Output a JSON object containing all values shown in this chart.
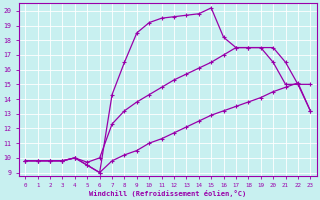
{
  "xlabel": "Windchill (Refroidissement éolien,°C)",
  "xlim": [
    -0.5,
    23.5
  ],
  "ylim": [
    8.8,
    20.5
  ],
  "xticks": [
    0,
    1,
    2,
    3,
    4,
    5,
    6,
    7,
    8,
    9,
    10,
    11,
    12,
    13,
    14,
    15,
    16,
    17,
    18,
    19,
    20,
    21,
    22,
    23
  ],
  "yticks": [
    9,
    10,
    11,
    12,
    13,
    14,
    15,
    16,
    17,
    18,
    19,
    20
  ],
  "bg_color": "#c8f0f0",
  "line_color": "#9900aa",
  "grid_color": "#ffffff",
  "line1_x": [
    0,
    1,
    2,
    3,
    4,
    5,
    6,
    7,
    8,
    9,
    10,
    11,
    12,
    13,
    14,
    15,
    16,
    17,
    18,
    19,
    20,
    21,
    22,
    23
  ],
  "line1_y": [
    9.8,
    9.8,
    9.8,
    9.8,
    10.0,
    9.5,
    9.0,
    9.8,
    10.2,
    10.5,
    11.0,
    11.3,
    11.7,
    12.1,
    12.5,
    12.9,
    13.2,
    13.5,
    13.8,
    14.1,
    14.5,
    14.8,
    15.1,
    13.2
  ],
  "line2_x": [
    0,
    1,
    2,
    3,
    4,
    5,
    6,
    7,
    8,
    9,
    10,
    11,
    12,
    13,
    14,
    15,
    16,
    17,
    18,
    19,
    20,
    21,
    22,
    23
  ],
  "line2_y": [
    9.8,
    9.8,
    9.8,
    9.8,
    10.0,
    9.7,
    10.0,
    12.3,
    13.2,
    13.8,
    14.3,
    14.8,
    15.3,
    15.7,
    16.1,
    16.5,
    17.0,
    17.5,
    17.5,
    17.5,
    16.5,
    15.0,
    15.0,
    13.2
  ],
  "line3_x": [
    0,
    1,
    2,
    3,
    4,
    5,
    6,
    7,
    8,
    9,
    10,
    11,
    12,
    13,
    14,
    15,
    16,
    17,
    18,
    20,
    21,
    22,
    23
  ],
  "line3_y": [
    9.8,
    9.8,
    9.8,
    9.8,
    10.0,
    9.5,
    9.0,
    14.3,
    16.5,
    18.5,
    19.2,
    19.5,
    19.6,
    19.7,
    19.8,
    20.2,
    18.2,
    17.5,
    17.5,
    17.5,
    16.5,
    15.0,
    15.0
  ]
}
